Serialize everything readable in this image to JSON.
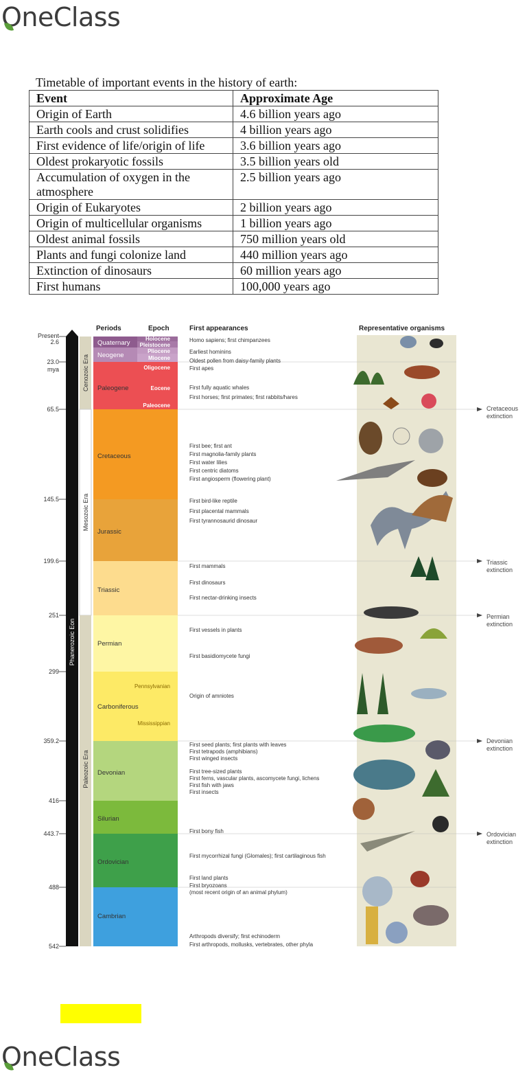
{
  "brand": {
    "name": "OneClass"
  },
  "timetable": {
    "caption": "Timetable of important events in the history of earth:",
    "headers": [
      "Event",
      "Approximate Age"
    ],
    "rows": [
      [
        "Origin of Earth",
        "4.6 billion years ago"
      ],
      [
        "Earth cools and crust solidifies",
        "4 billion years ago"
      ],
      [
        "First evidence of life/origin of life",
        "3.6 billion years ago"
      ],
      [
        "Oldest prokaryotic fossils",
        "3.5 billion years old"
      ],
      [
        "Accumulation of oxygen in the atmosphere",
        "2.5 billion years ago"
      ],
      [
        "Origin of Eukaryotes",
        "2 billion years ago"
      ],
      [
        "Origin of multicellular organisms",
        "1 billion years ago"
      ],
      [
        "Oldest animal fossils",
        "750 million years old"
      ],
      [
        "Plants and fungi colonize land",
        "440 million years ago"
      ],
      [
        "Extinction of dinosaurs",
        "60 million years ago"
      ],
      [
        "First humans",
        "100,000 years ago"
      ]
    ]
  },
  "timescale": {
    "headers": {
      "periods": "Periods",
      "epoch": "Epoch",
      "first": "First appearances",
      "organisms": "Representative organisms"
    },
    "axis_ticks": [
      "Present",
      "2.6",
      "23.0",
      "mya",
      "65.5",
      "145.5",
      "199.6",
      "251",
      "299",
      "359.2",
      "416",
      "443.7",
      "488",
      "542"
    ],
    "eon": "Phanerozoic Eon",
    "eras": [
      "Cenozoic Era",
      "Mesozoic Era",
      "Paleozoic Era"
    ],
    "periods": [
      "Quaternary",
      "Neogene",
      "Paleogene",
      "Cretaceous",
      "Jurassic",
      "Triassic",
      "Permian",
      "Carboniferous",
      "Devonian",
      "Silurian",
      "Ordovician",
      "Cambrian"
    ],
    "epochs": [
      "Holocene",
      "Pleistocene",
      "Pliocene",
      "Miocene",
      "Oligocene",
      "Eocene",
      "Paleocene",
      "Pennsylvanian",
      "Mississippian"
    ],
    "first_appearances": [
      "Homo sapiens; first chimpanzees",
      "Earliest hominins",
      "Oldest pollen from daisy-family plants",
      "First apes",
      "First fully aquatic whales",
      "First horses; first primates; first rabbits/hares",
      "First bee; first ant",
      "First magnolia-family plants",
      "First water lilies",
      "First centric diatoms",
      "First angiosperm (flowering plant)",
      "First bird-like reptile",
      "First placental mammals",
      "First tyrannosaurid dinosaur",
      "First mammals",
      "First dinosaurs",
      "First nectar-drinking insects",
      "First vessels in plants",
      "First basidiomycete fungi",
      "Origin of amniotes",
      "First seed plants; first plants with leaves",
      "First tetrapods (amphibians)",
      "First winged insects",
      "First tree-sized plants",
      "First ferns, vascular plants, ascomycete fungi, lichens",
      "First fish with jaws",
      "First insects",
      "First bony fish",
      "First mycorrhizal fungi (Glomales); first cartilaginous fish",
      "First land plants",
      "First bryozoans",
      "(most recent origin of an animal phylum)",
      "Arthropods diversify; first echinoderm",
      "First arthropods, mollusks, vertebrates, other phyla"
    ],
    "extinctions": [
      [
        "Cretaceous",
        "extinction"
      ],
      [
        "Triassic",
        "extinction"
      ],
      [
        "Permian",
        "extinction"
      ],
      [
        "Devonian",
        "extinction"
      ],
      [
        "Ordovician",
        "extinction"
      ]
    ]
  }
}
